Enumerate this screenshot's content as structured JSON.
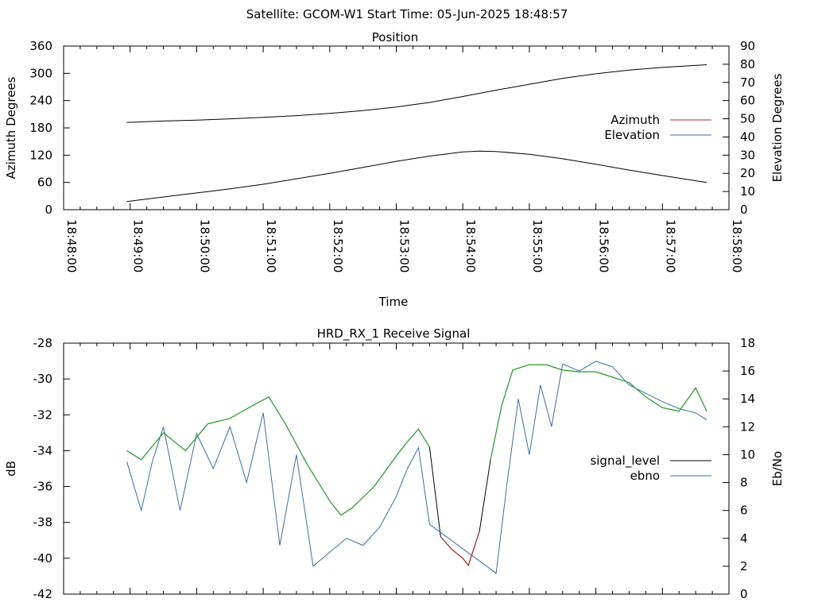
{
  "page_title": "Satellite: GCOM-W1    Start Time: 05-Jun-2025 18:48:57",
  "colors": {
    "azimuth": "#a8303a",
    "elevation": "#3a6ea5",
    "signal_level": "#000000",
    "ebno": "#3a6ea5",
    "green": "#22aa22",
    "red": "#b22222"
  },
  "chart_data": [
    {
      "type": "line",
      "title": "Position",
      "xlabel": "Time",
      "ylabel": "Azimuth Degrees",
      "y2label": "Elevation Degrees",
      "xlim": [
        "18:48:00",
        "18:58:00"
      ],
      "x_ticks": [
        "18:48:00",
        "18:49:00",
        "18:50:00",
        "18:51:00",
        "18:52:00",
        "18:53:00",
        "18:54:00",
        "18:55:00",
        "18:56:00",
        "18:57:00",
        "18:58:00"
      ],
      "ylim": [
        0,
        360
      ],
      "y_ticks": [
        "0",
        "60",
        "120",
        "180",
        "240",
        "300",
        "360"
      ],
      "y2lim": [
        0,
        90
      ],
      "y2_ticks": [
        "0",
        "10",
        "20",
        "30",
        "40",
        "50",
        "60",
        "70",
        "80",
        "90"
      ],
      "legend_position": "right",
      "series": [
        {
          "name": "Azimuth",
          "axis": "y",
          "x": [
            "18:48:57",
            "18:49:30",
            "18:50:00",
            "18:50:30",
            "18:51:00",
            "18:51:30",
            "18:52:00",
            "18:52:30",
            "18:53:00",
            "18:53:30",
            "18:54:00",
            "18:54:30",
            "18:55:00",
            "18:55:30",
            "18:56:00",
            "18:56:30",
            "18:57:00",
            "18:57:40"
          ],
          "values": [
            192,
            195,
            197,
            200,
            203,
            207,
            212,
            218,
            226,
            236,
            249,
            263,
            276,
            289,
            299,
            307,
            313,
            319
          ]
        },
        {
          "name": "Elevation",
          "axis": "y2",
          "x": [
            "18:48:57",
            "18:49:30",
            "18:50:00",
            "18:50:30",
            "18:51:00",
            "18:51:30",
            "18:52:00",
            "18:52:30",
            "18:53:00",
            "18:53:30",
            "18:54:00",
            "18:54:15",
            "18:54:30",
            "18:55:00",
            "18:55:30",
            "18:56:00",
            "18:56:30",
            "18:57:00",
            "18:57:40"
          ],
          "values": [
            4.5,
            7,
            9.2,
            11.5,
            14,
            17,
            20,
            23.3,
            26.6,
            29.5,
            31.8,
            32.2,
            32.0,
            30.5,
            28,
            25,
            21.8,
            18.8,
            15
          ]
        }
      ]
    },
    {
      "type": "line",
      "title": "HRD_RX_1 Receive Signal",
      "ylabel": "dB",
      "y2label": "Eb/No",
      "xlim": [
        "18:48:00",
        "18:58:00"
      ],
      "ylim": [
        -42,
        -28
      ],
      "y_ticks": [
        "-28",
        "-30",
        "-32",
        "-34",
        "-36",
        "-38",
        "-40",
        "-42"
      ],
      "y2lim": [
        0,
        18
      ],
      "y2_ticks": [
        "0",
        "2",
        "4",
        "6",
        "8",
        "10",
        "12",
        "14",
        "16",
        "18"
      ],
      "legend_position": "right",
      "series": [
        {
          "name": "signal_level",
          "axis": "y",
          "x": [
            "18:48:57",
            "18:49:10",
            "18:49:30",
            "18:49:50",
            "18:50:10",
            "18:50:30",
            "18:50:50",
            "18:51:05",
            "18:51:20",
            "18:51:40",
            "18:52:00",
            "18:52:10",
            "18:52:20",
            "18:52:40",
            "18:53:00",
            "18:53:10",
            "18:53:20",
            "18:53:30",
            "18:53:40",
            "18:53:50",
            "18:54:00",
            "18:54:05",
            "18:54:15",
            "18:54:25",
            "18:54:35",
            "18:54:45",
            "18:55:00",
            "18:55:15",
            "18:55:30",
            "18:55:45",
            "18:56:00",
            "18:56:15",
            "18:56:30",
            "18:56:45",
            "18:57:00",
            "18:57:15",
            "18:57:30",
            "18:57:40"
          ],
          "values": [
            -34,
            -34.5,
            -33,
            -34,
            -32.5,
            -32.2,
            -31.5,
            -31,
            -32.5,
            -34.8,
            -36.8,
            -37.6,
            -37.2,
            -36,
            -34.3,
            -33.5,
            -32.8,
            -33.8,
            -38.8,
            -39.5,
            -40,
            -40.4,
            -38.5,
            -34.5,
            -31.5,
            -29.5,
            -29.2,
            -29.2,
            -29.5,
            -29.6,
            -29.6,
            -29.9,
            -30.2,
            -31,
            -31.6,
            -31.8,
            -30.5,
            -31.8
          ]
        },
        {
          "name": "ebno",
          "axis": "y2",
          "x": [
            "18:48:57",
            "18:49:10",
            "18:49:20",
            "18:49:30",
            "18:49:45",
            "18:50:00",
            "18:50:15",
            "18:50:30",
            "18:50:45",
            "18:51:00",
            "18:51:15",
            "18:51:30",
            "18:51:45",
            "18:52:00",
            "18:52:15",
            "18:52:30",
            "18:52:45",
            "18:53:00",
            "18:53:10",
            "18:53:20",
            "18:53:30",
            "18:54:30",
            "18:54:40",
            "18:54:50",
            "18:55:00",
            "18:55:10",
            "18:55:20",
            "18:55:30",
            "18:55:45",
            "18:56:00",
            "18:56:15",
            "18:56:30",
            "18:56:45",
            "18:57:00",
            "18:57:15",
            "18:57:30",
            "18:57:40"
          ],
          "values": [
            9.5,
            6,
            9.5,
            12,
            6,
            11.5,
            9,
            12,
            8,
            13,
            3.5,
            10,
            2,
            3,
            4,
            3.5,
            4.8,
            7,
            9,
            10.5,
            5,
            1.5,
            8,
            14,
            10,
            15,
            12,
            16.5,
            16,
            16.7,
            16.3,
            15,
            14.4,
            13.8,
            13.3,
            13,
            12.5
          ]
        },
        {
          "name": "",
          "axis": "y",
          "color_key": "green",
          "x": [
            "18:48:57",
            "18:49:10",
            "18:49:30",
            "18:49:50",
            "18:50:10",
            "18:50:30",
            "18:50:50",
            "18:51:05",
            "18:51:20",
            "18:51:40",
            "18:52:00",
            "18:52:10",
            "18:52:20",
            "18:52:40",
            "18:53:00",
            "18:53:10",
            "18:53:20",
            "18:53:30"
          ],
          "values": [
            -34,
            -34.5,
            -33,
            -34,
            -32.5,
            -32.2,
            -31.5,
            -31,
            -32.5,
            -34.8,
            -36.8,
            -37.6,
            -37.2,
            -36,
            -34.3,
            -33.5,
            -32.8,
            -33.8
          ]
        },
        {
          "name": "",
          "axis": "y",
          "color_key": "red",
          "x": [
            "18:53:40",
            "18:53:50",
            "18:54:00",
            "18:54:05",
            "18:54:15"
          ],
          "values": [
            -38.8,
            -39.5,
            -40,
            -40.4,
            -38.5
          ]
        },
        {
          "name": "",
          "axis": "y",
          "color_key": "green",
          "x": [
            "18:54:25",
            "18:54:35",
            "18:54:45",
            "18:55:00",
            "18:55:15",
            "18:55:30",
            "18:55:45",
            "18:56:00",
            "18:56:15",
            "18:56:30",
            "18:56:45",
            "18:57:00",
            "18:57:15",
            "18:57:30",
            "18:57:40"
          ],
          "values": [
            -34.5,
            -31.5,
            -29.5,
            -29.2,
            -29.2,
            -29.5,
            -29.6,
            -29.6,
            -29.9,
            -30.2,
            -31,
            -31.6,
            -31.8,
            -30.5,
            -31.8
          ]
        }
      ]
    }
  ]
}
